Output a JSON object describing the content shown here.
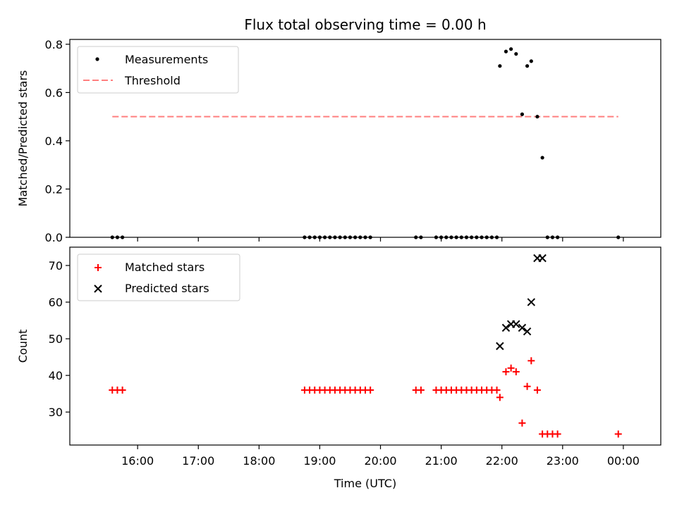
{
  "chart_data": [
    {
      "type": "scatter",
      "title": "Flux total observing time = 0.00 h",
      "xlabel": "",
      "ylabel": "Matched/Predicted stars",
      "ylim": [
        0,
        0.82
      ],
      "yticks": [
        "0.0",
        "0.2",
        "0.4",
        "0.6",
        "0.8"
      ],
      "legend_placement": "top-left",
      "threshold": {
        "name": "Threshold",
        "value": 0.5,
        "color": "#ff7f7f",
        "x": [
          "15:35",
          "23:55"
        ]
      },
      "series": [
        {
          "name": "Measurements",
          "color": "#000000",
          "points": [
            [
              "15:35",
              0
            ],
            [
              "15:40",
              0
            ],
            [
              "15:45",
              0
            ],
            [
              "18:45",
              0
            ],
            [
              "18:50",
              0
            ],
            [
              "18:55",
              0
            ],
            [
              "19:00",
              0
            ],
            [
              "19:05",
              0
            ],
            [
              "19:10",
              0
            ],
            [
              "19:15",
              0
            ],
            [
              "19:20",
              0
            ],
            [
              "19:25",
              0
            ],
            [
              "19:30",
              0
            ],
            [
              "19:35",
              0
            ],
            [
              "19:40",
              0
            ],
            [
              "19:45",
              0
            ],
            [
              "19:50",
              0
            ],
            [
              "20:35",
              0
            ],
            [
              "20:40",
              0
            ],
            [
              "20:55",
              0
            ],
            [
              "21:00",
              0
            ],
            [
              "21:05",
              0
            ],
            [
              "21:10",
              0
            ],
            [
              "21:15",
              0
            ],
            [
              "21:20",
              0
            ],
            [
              "21:25",
              0
            ],
            [
              "21:30",
              0
            ],
            [
              "21:35",
              0
            ],
            [
              "21:40",
              0
            ],
            [
              "21:45",
              0
            ],
            [
              "21:50",
              0
            ],
            [
              "21:55",
              0
            ],
            [
              "21:58",
              0.71
            ],
            [
              "22:04",
              0.77
            ],
            [
              "22:09",
              0.78
            ],
            [
              "22:14",
              0.76
            ],
            [
              "22:20",
              0.51
            ],
            [
              "22:25",
              0.71
            ],
            [
              "22:29",
              0.73
            ],
            [
              "22:35",
              0.5
            ],
            [
              "22:40",
              0.33
            ],
            [
              "22:45",
              0
            ],
            [
              "22:50",
              0
            ],
            [
              "22:55",
              0
            ],
            [
              "23:55",
              0
            ]
          ]
        }
      ]
    },
    {
      "type": "scatter",
      "xlabel": "Time (UTC)",
      "ylabel": "Count",
      "ylim": [
        21,
        75
      ],
      "yticks": [
        "30",
        "40",
        "50",
        "60",
        "70"
      ],
      "xticks": [
        "16:00",
        "17:00",
        "18:00",
        "19:00",
        "20:00",
        "21:00",
        "22:00",
        "23:00",
        "00:00"
      ],
      "legend_placement": "top-left",
      "series": [
        {
          "name": "Matched stars",
          "color": "#ff0000",
          "marker": "+",
          "points": [
            [
              "15:35",
              36
            ],
            [
              "15:40",
              36
            ],
            [
              "15:45",
              36
            ],
            [
              "18:45",
              36
            ],
            [
              "18:50",
              36
            ],
            [
              "18:55",
              36
            ],
            [
              "19:00",
              36
            ],
            [
              "19:05",
              36
            ],
            [
              "19:10",
              36
            ],
            [
              "19:15",
              36
            ],
            [
              "19:20",
              36
            ],
            [
              "19:25",
              36
            ],
            [
              "19:30",
              36
            ],
            [
              "19:35",
              36
            ],
            [
              "19:40",
              36
            ],
            [
              "19:45",
              36
            ],
            [
              "19:50",
              36
            ],
            [
              "20:35",
              36
            ],
            [
              "20:40",
              36
            ],
            [
              "20:55",
              36
            ],
            [
              "21:00",
              36
            ],
            [
              "21:05",
              36
            ],
            [
              "21:10",
              36
            ],
            [
              "21:15",
              36
            ],
            [
              "21:20",
              36
            ],
            [
              "21:25",
              36
            ],
            [
              "21:30",
              36
            ],
            [
              "21:35",
              36
            ],
            [
              "21:40",
              36
            ],
            [
              "21:45",
              36
            ],
            [
              "21:50",
              36
            ],
            [
              "21:55",
              36
            ],
            [
              "21:58",
              34
            ],
            [
              "22:04",
              41
            ],
            [
              "22:09",
              42
            ],
            [
              "22:14",
              41
            ],
            [
              "22:20",
              27
            ],
            [
              "22:25",
              37
            ],
            [
              "22:29",
              44
            ],
            [
              "22:35",
              36
            ],
            [
              "22:40",
              24
            ],
            [
              "22:45",
              24
            ],
            [
              "22:50",
              24
            ],
            [
              "22:55",
              24
            ],
            [
              "23:55",
              24
            ]
          ]
        },
        {
          "name": "Predicted stars",
          "color": "#000000",
          "marker": "x",
          "points": [
            [
              "21:58",
              48
            ],
            [
              "22:04",
              53
            ],
            [
              "22:09",
              54
            ],
            [
              "22:14",
              54
            ],
            [
              "22:20",
              53
            ],
            [
              "22:25",
              52
            ],
            [
              "22:29",
              60
            ],
            [
              "22:35",
              72
            ],
            [
              "22:40",
              72
            ]
          ]
        }
      ]
    }
  ]
}
